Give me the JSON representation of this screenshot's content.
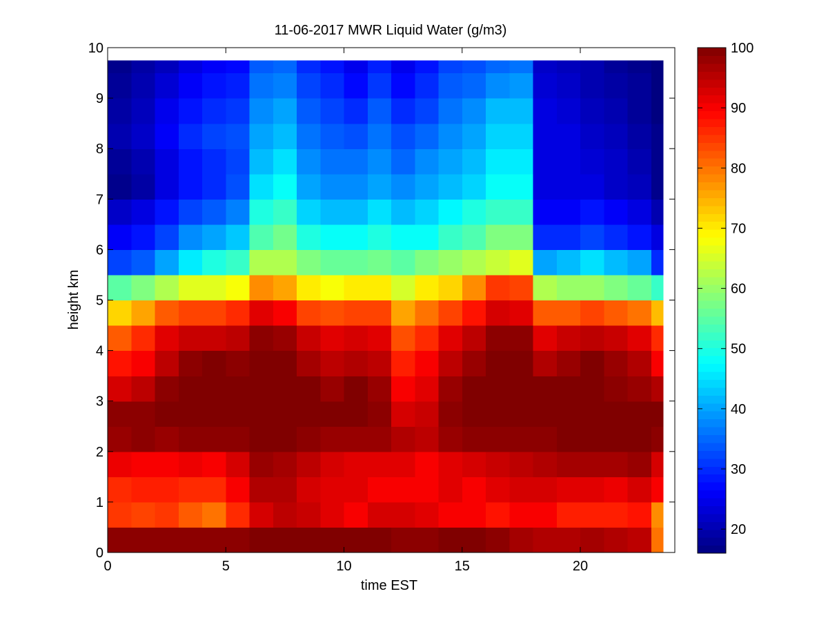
{
  "chart_data": {
    "type": "heatmap",
    "title": "11-06-2017 MWR Liquid Water (g/m3)",
    "xlabel": "time EST",
    "ylabel": "height km",
    "xlim": [
      0,
      24
    ],
    "ylim": [
      0,
      10
    ],
    "x_ticks": [
      0,
      5,
      10,
      15,
      20
    ],
    "y_ticks": [
      0,
      1,
      2,
      3,
      4,
      5,
      6,
      7,
      8,
      9,
      10
    ],
    "colorbar": {
      "colormap": "jet",
      "clim": [
        16,
        100
      ],
      "ticks": [
        20,
        30,
        40,
        50,
        60,
        70,
        80,
        90,
        100
      ]
    },
    "x_edges": [
      0,
      1,
      2,
      3,
      4,
      5,
      6,
      7,
      8,
      9,
      10,
      11,
      12,
      13,
      14,
      15,
      16,
      17,
      18,
      19,
      20,
      21,
      22,
      23,
      23.5
    ],
    "y_edges": [
      0,
      0.5,
      1,
      1.5,
      2,
      2.5,
      3,
      3.5,
      4,
      4.5,
      5,
      5.5,
      6,
      6.5,
      7,
      7.5,
      8,
      8.5,
      9,
      9.5,
      9.75
    ],
    "values_rows_from_bottom": [
      [
        99,
        99,
        99,
        99,
        99,
        99,
        100,
        100,
        100,
        100,
        100,
        100,
        99,
        99,
        100,
        100,
        99,
        97,
        96,
        96,
        97,
        96,
        95,
        80
      ],
      [
        85,
        84,
        85,
        82,
        80,
        86,
        93,
        95,
        94,
        92,
        90,
        93,
        93,
        92,
        90,
        90,
        88,
        90,
        90,
        87,
        87,
        87,
        88,
        78
      ],
      [
        86,
        87,
        87,
        86,
        86,
        90,
        96,
        96,
        93,
        92,
        92,
        90,
        90,
        90,
        92,
        90,
        92,
        93,
        93,
        92,
        92,
        91,
        93,
        90
      ],
      [
        91,
        90,
        90,
        91,
        90,
        93,
        98,
        97,
        95,
        93,
        92,
        92,
        92,
        90,
        92,
        93,
        94,
        95,
        96,
        97,
        97,
        97,
        98,
        93
      ],
      [
        98,
        99,
        98,
        99,
        99,
        99,
        100,
        100,
        99,
        98,
        98,
        98,
        96,
        95,
        98,
        99,
        99,
        99,
        99,
        100,
        100,
        100,
        100,
        99
      ],
      [
        99,
        99,
        100,
        100,
        100,
        100,
        100,
        100,
        100,
        100,
        100,
        99,
        93,
        94,
        99,
        100,
        100,
        100,
        100,
        100,
        100,
        100,
        100,
        100
      ],
      [
        93,
        95,
        99,
        100,
        100,
        100,
        100,
        100,
        100,
        98,
        100,
        98,
        90,
        92,
        98,
        100,
        100,
        100,
        100,
        100,
        100,
        99,
        98,
        96
      ],
      [
        88,
        90,
        95,
        99,
        100,
        99,
        100,
        100,
        97,
        95,
        96,
        95,
        87,
        90,
        95,
        98,
        100,
        100,
        96,
        98,
        100,
        98,
        96,
        90
      ],
      [
        82,
        86,
        92,
        94,
        94,
        95,
        99,
        98,
        94,
        92,
        93,
        92,
        83,
        86,
        92,
        95,
        99,
        99,
        92,
        94,
        95,
        94,
        92,
        86
      ],
      [
        72,
        76,
        82,
        84,
        84,
        86,
        92,
        90,
        84,
        83,
        84,
        84,
        76,
        80,
        84,
        88,
        93,
        92,
        82,
        82,
        84,
        82,
        80,
        74
      ],
      [
        55,
        58,
        62,
        66,
        66,
        68,
        78,
        76,
        70,
        68,
        70,
        70,
        65,
        70,
        72,
        78,
        85,
        84,
        62,
        60,
        60,
        58,
        56,
        52
      ],
      [
        32,
        34,
        40,
        46,
        50,
        52,
        62,
        62,
        58,
        56,
        56,
        57,
        55,
        58,
        60,
        62,
        64,
        66,
        40,
        42,
        45,
        42,
        40,
        30
      ],
      [
        26,
        28,
        32,
        38,
        40,
        43,
        54,
        57,
        50,
        48,
        48,
        50,
        48,
        48,
        52,
        54,
        58,
        58,
        30,
        30,
        32,
        30,
        28,
        24
      ],
      [
        22,
        24,
        28,
        32,
        34,
        37,
        50,
        52,
        44,
        42,
        42,
        45,
        42,
        44,
        47,
        50,
        52,
        52,
        26,
        26,
        28,
        26,
        24,
        20
      ],
      [
        17,
        19,
        24,
        28,
        30,
        33,
        45,
        48,
        40,
        38,
        38,
        40,
        38,
        40,
        42,
        44,
        48,
        48,
        24,
        24,
        24,
        22,
        21,
        17
      ],
      [
        18,
        20,
        24,
        28,
        30,
        32,
        42,
        45,
        38,
        36,
        36,
        38,
        35,
        38,
        40,
        42,
        46,
        46,
        24,
        24,
        23,
        22,
        20,
        17
      ],
      [
        20,
        22,
        26,
        30,
        32,
        33,
        40,
        42,
        36,
        34,
        33,
        36,
        33,
        35,
        38,
        40,
        44,
        44,
        24,
        24,
        22,
        21,
        19,
        17
      ],
      [
        19,
        21,
        25,
        28,
        30,
        31,
        38,
        40,
        34,
        32,
        30,
        34,
        30,
        32,
        36,
        38,
        42,
        42,
        24,
        23,
        21,
        20,
        18,
        16
      ],
      [
        18,
        20,
        23,
        26,
        28,
        29,
        36,
        37,
        32,
        30,
        27,
        31,
        27,
        30,
        34,
        35,
        38,
        39,
        23,
        22,
        20,
        19,
        18,
        16
      ],
      [
        17,
        19,
        21,
        24,
        26,
        27,
        34,
        35,
        30,
        28,
        25,
        29,
        25,
        28,
        32,
        33,
        35,
        36,
        22,
        21,
        20,
        18,
        17,
        16
      ]
    ]
  }
}
